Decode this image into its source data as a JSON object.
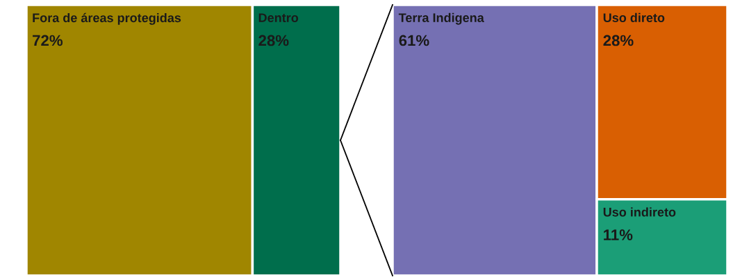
{
  "chart_data": [
    {
      "type": "other",
      "categories": [
        "Fora de áreas protegidas",
        "Dentro"
      ],
      "values": [
        72,
        28
      ],
      "value_labels": [
        "72%",
        "28%"
      ],
      "colors": [
        "#a08600",
        "#006e4c"
      ]
    },
    {
      "type": "other",
      "categories": [
        "Terra Indigena",
        "Uso direto",
        "Uso indireto"
      ],
      "values": [
        61,
        28,
        11
      ],
      "value_labels": [
        "61%",
        "28%",
        "11%"
      ],
      "colors": [
        "#7570b3",
        "#d95f02",
        "#1b9e77"
      ]
    }
  ]
}
